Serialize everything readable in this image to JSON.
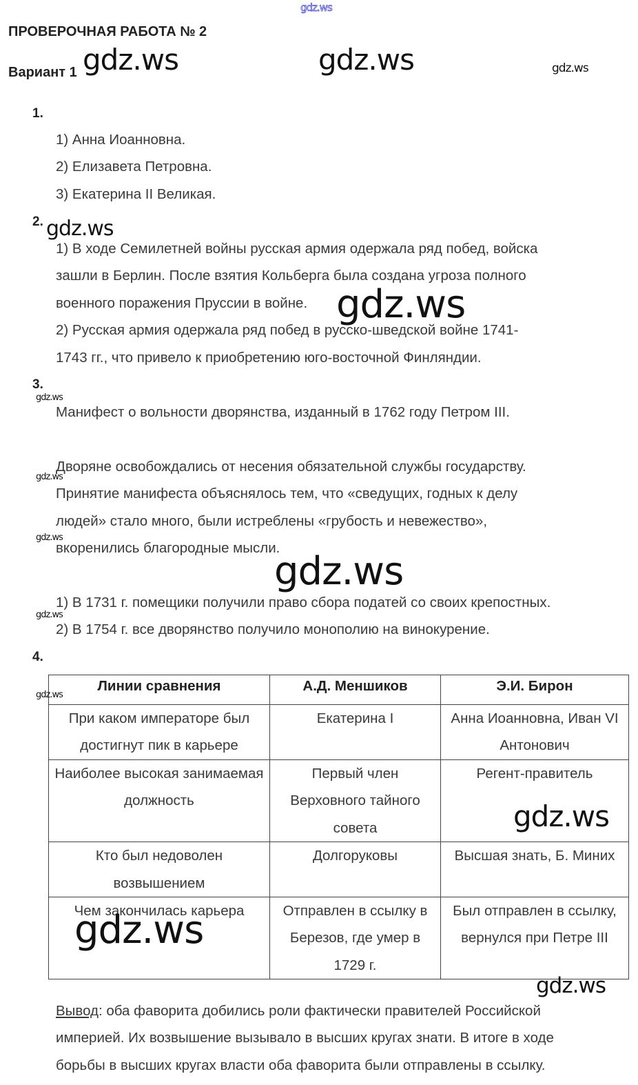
{
  "header": {
    "title": "ПРОВЕРОЧНАЯ РАБОТА № 2",
    "variant": "Вариант 1"
  },
  "watermark": "gdz.ws",
  "q1": {
    "number": "1.",
    "items": [
      "1) Анна Иоанновна.",
      "2) Елизавета Петровна.",
      "3) Екатерина II Великая."
    ]
  },
  "q2": {
    "number": "2.",
    "lines": [
      "1) В ходе Семилетней войны русская армия одержала ряд побед, войска",
      "зашли в Берлин. После взятия Кольберга была создана угроза полного",
      "военного поражения Пруссии в войне.",
      "2) Русская армия одержала ряд побед в русско-шведской войне 1741-",
      "1743 гг., что привело к приобретению юго-восточной Финляндии."
    ]
  },
  "q3": {
    "number": "3.",
    "line1": "Манифест о вольности дворянства, изданный в 1762 году Петром III.",
    "para": [
      "Дворяне освобождались от несения обязательной службы государству.",
      "Принятие манифеста объяснялось тем, что «сведущих, годных к делу",
      "людей» стало много, были истреблены «грубость и невежество»,",
      "вкоренились благородные мысли."
    ],
    "items": [
      "1) В 1731 г. помещики получили право сбора податей со своих крепостных.",
      "2) В 1754 г. все дворянство получило монополию на винокурение."
    ]
  },
  "q4": {
    "number": "4.",
    "table": {
      "headers": [
        "Линии сравнения",
        "А.Д. Меншиков",
        "Э.И. Бирон"
      ],
      "rows": [
        [
          "При каком императоре был достигнут пик в карьере",
          "Екатерина I",
          "Анна Иоанновна, Иван VI Антонович"
        ],
        [
          "Наиболее высокая занимаемая должность",
          "Первый член Верховного тайного совета",
          "Регент-правитель"
        ],
        [
          "Кто был недоволен возвышением",
          "Долгоруковы",
          "Высшая знать, Б. Миних"
        ],
        [
          "Чем закончилась карьера",
          "Отправлен в ссылку в Березов, где умер в 1729 г.",
          "Был отправлен в ссылку, вернулся при Петре III"
        ]
      ]
    },
    "conclusion_label": "Вывод",
    "conclusion_lines": [
      ": оба фаворита добились роли фактически правителей Российской",
      "империей. Их возвышение вызывало в высших кругах знати. В итоге в ходе",
      "борьбы в высших кругах власти оба фаворита были отправлены в ссылку."
    ]
  }
}
